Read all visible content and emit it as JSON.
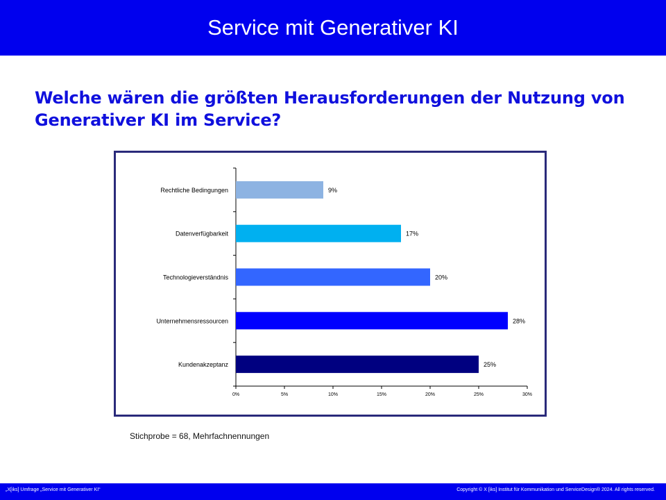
{
  "header": {
    "title": "Service mit Generativer KI"
  },
  "question": "Welche wären die größten Herausforderungen der Nutzung von Generativer KI im Service?",
  "chart_data": {
    "type": "bar",
    "orientation": "horizontal",
    "categories": [
      "Rechtliche Bedingungen",
      "Datenverfügbarkeit",
      "Technologieverständnis",
      "Unternehmensressourcen",
      "Kundenakzeptanz"
    ],
    "values": [
      9,
      17,
      20,
      28,
      25
    ],
    "value_labels": [
      "9%",
      "17%",
      "20%",
      "28%",
      "25%"
    ],
    "colors": [
      "#8db3e2",
      "#00b0f0",
      "#3366ff",
      "#0000ff",
      "#000080"
    ],
    "xlim": [
      0,
      30
    ],
    "xticks": [
      0,
      5,
      10,
      15,
      20,
      25,
      30
    ],
    "xtick_labels": [
      "0%",
      "5%",
      "10%",
      "15%",
      "20%",
      "25%",
      "30%"
    ],
    "grid": false,
    "legend": "none"
  },
  "note": "Stichprobe = 68, Mehrfachnennungen",
  "footer": {
    "left": "„X[iks] Umfrage „Service mit Generativer KI“",
    "right": "Copyright © X [iks] Institut für Kommunikation und ServiceDesign® 2024. All rights reserved."
  }
}
